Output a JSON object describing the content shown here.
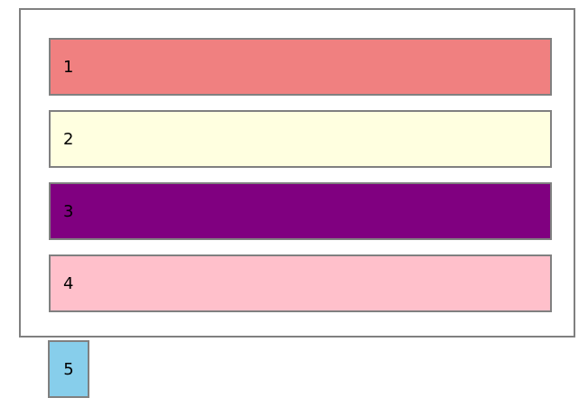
{
  "container": {
    "items": [
      {
        "label": "1",
        "color": "#f08080"
      },
      {
        "label": "2",
        "color": "#ffffe0"
      },
      {
        "label": "3",
        "color": "#800080"
      },
      {
        "label": "4",
        "color": "#ffc0cb"
      }
    ]
  },
  "outside_item": {
    "label": "5",
    "color": "#87ceeb"
  }
}
